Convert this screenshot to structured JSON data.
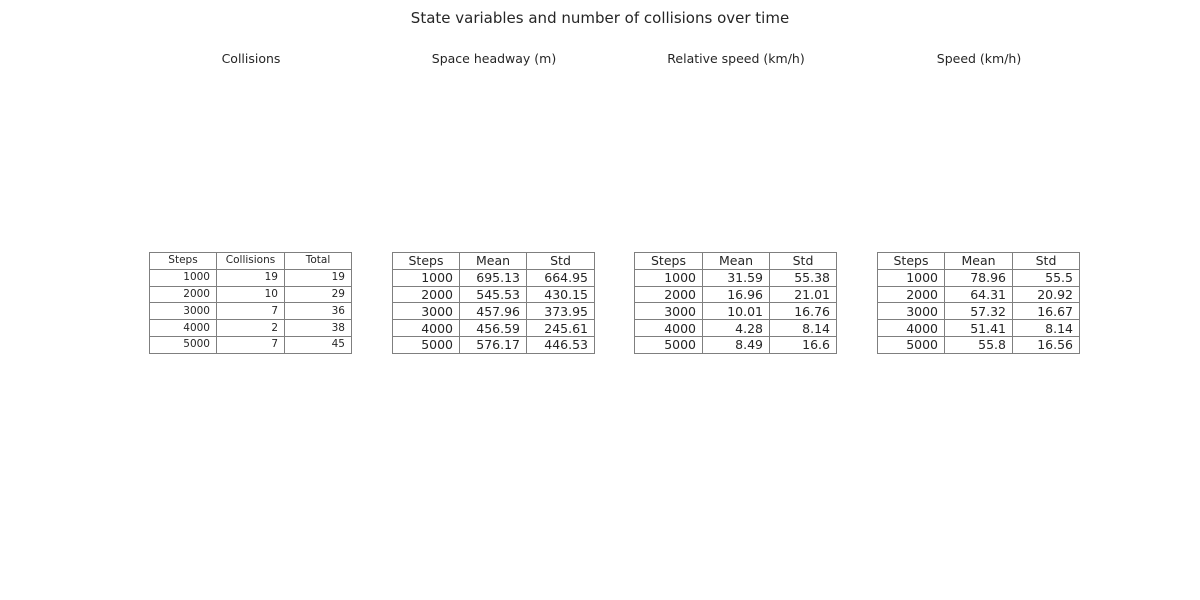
{
  "title": "State variables and number of collisions over time",
  "chart_data": [
    {
      "type": "table",
      "title": "Collisions",
      "columns": [
        "Steps",
        "Collisions",
        "Total"
      ],
      "rows": [
        [
          "1000",
          "19",
          "19"
        ],
        [
          "2000",
          "10",
          "29"
        ],
        [
          "3000",
          "7",
          "36"
        ],
        [
          "4000",
          "2",
          "38"
        ],
        [
          "5000",
          "7",
          "45"
        ]
      ]
    },
    {
      "type": "table",
      "title": "Space headway (m)",
      "columns": [
        "Steps",
        "Mean",
        "Std"
      ],
      "rows": [
        [
          "1000",
          "695.13",
          "664.95"
        ],
        [
          "2000",
          "545.53",
          "430.15"
        ],
        [
          "3000",
          "457.96",
          "373.95"
        ],
        [
          "4000",
          "456.59",
          "245.61"
        ],
        [
          "5000",
          "576.17",
          "446.53"
        ]
      ]
    },
    {
      "type": "table",
      "title": "Relative speed (km/h)",
      "columns": [
        "Steps",
        "Mean",
        "Std"
      ],
      "rows": [
        [
          "1000",
          "31.59",
          "55.38"
        ],
        [
          "2000",
          "16.96",
          "21.01"
        ],
        [
          "3000",
          "10.01",
          "16.76"
        ],
        [
          "4000",
          "4.28",
          "8.14"
        ],
        [
          "5000",
          "8.49",
          "16.6"
        ]
      ]
    },
    {
      "type": "table",
      "title": "Speed (km/h)",
      "columns": [
        "Steps",
        "Mean",
        "Std"
      ],
      "rows": [
        [
          "1000",
          "78.96",
          "55.5"
        ],
        [
          "2000",
          "64.31",
          "20.92"
        ],
        [
          "3000",
          "57.32",
          "16.67"
        ],
        [
          "4000",
          "51.41",
          "8.14"
        ],
        [
          "5000",
          "55.8",
          "16.56"
        ]
      ]
    }
  ]
}
